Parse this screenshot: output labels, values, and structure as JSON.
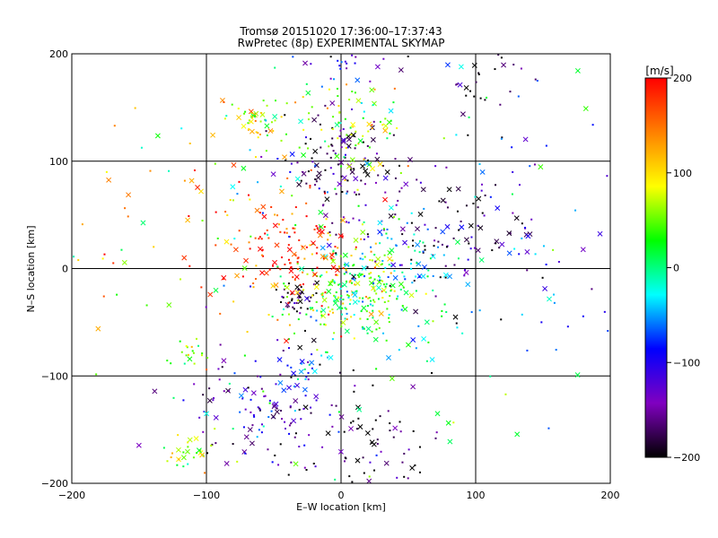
{
  "title": "Tromsø 20151020 17:36:00–17:37:43",
  "subtitle": "RwPretec (8p) EXPERIMENTAL SKYMAP",
  "colorbar_label": "[m/s]",
  "chart_data": {
    "type": "scatter",
    "title": "Tromsø 20151020 17:36:00–17:37:43",
    "subtitle": "RwPretec (8p) EXPERIMENTAL SKYMAP",
    "xlabel": "E–W location [km]",
    "ylabel": "N–S location [km]",
    "xlim": [
      -200,
      200
    ],
    "ylim": [
      -200,
      200
    ],
    "xticks": [
      "−200",
      "−100",
      "0",
      "100",
      "200"
    ],
    "yticks": [
      "−200",
      "−100",
      "0",
      "100",
      "200"
    ],
    "grid": true,
    "colorbar": {
      "label": "[m/s]",
      "range": [
        -200,
        200
      ],
      "ticks": [
        "200",
        "100",
        "0",
        "−100",
        "−200"
      ],
      "colormap": [
        "#000000",
        "#8000c0",
        "#0000ff",
        "#00ffff",
        "#00ff00",
        "#ffff00",
        "#ff8000",
        "#ff0000"
      ]
    },
    "markers": {
      "small": "dot",
      "large": "x"
    },
    "clusters": [
      {
        "x": -30,
        "y": -25,
        "spread": 8,
        "v": -200,
        "n": 40
      },
      {
        "x": 5,
        "y": -25,
        "spread": 22,
        "v": 40,
        "n": 220
      },
      {
        "x": -40,
        "y": 20,
        "spread": 30,
        "v": 180,
        "n": 150
      },
      {
        "x": 0,
        "y": 95,
        "spread": 25,
        "v": -170,
        "n": 120
      },
      {
        "x": -65,
        "y": 135,
        "spread": 10,
        "v": 90,
        "n": 40
      },
      {
        "x": 10,
        "y": 130,
        "spread": 25,
        "v": 60,
        "n": 80
      },
      {
        "x": 80,
        "y": 40,
        "spread": 35,
        "v": -180,
        "n": 100
      },
      {
        "x": 40,
        "y": 0,
        "spread": 25,
        "v": -30,
        "n": 100
      },
      {
        "x": -60,
        "y": -130,
        "spread": 30,
        "v": -140,
        "n": 120
      },
      {
        "x": 20,
        "y": -160,
        "spread": 30,
        "v": -190,
        "n": 80
      },
      {
        "x": -110,
        "y": -170,
        "spread": 12,
        "v": 80,
        "n": 30
      },
      {
        "x": -115,
        "y": -80,
        "spread": 10,
        "v": 60,
        "n": 20
      },
      {
        "x": 0,
        "y": 195,
        "spread": 15,
        "v": -120,
        "n": 30
      },
      {
        "x": 110,
        "y": 180,
        "spread": 20,
        "v": -200,
        "n": 30
      },
      {
        "x": -25,
        "y": -90,
        "spread": 10,
        "v": -50,
        "n": 20
      },
      {
        "x": -150,
        "y": 50,
        "spread": 40,
        "v": 140,
        "n": 40
      },
      {
        "x": 130,
        "y": 50,
        "spread": 50,
        "v": -100,
        "n": 50
      },
      {
        "x": 0,
        "y": 0,
        "spread": 120,
        "v": 0,
        "n": 150
      }
    ]
  }
}
